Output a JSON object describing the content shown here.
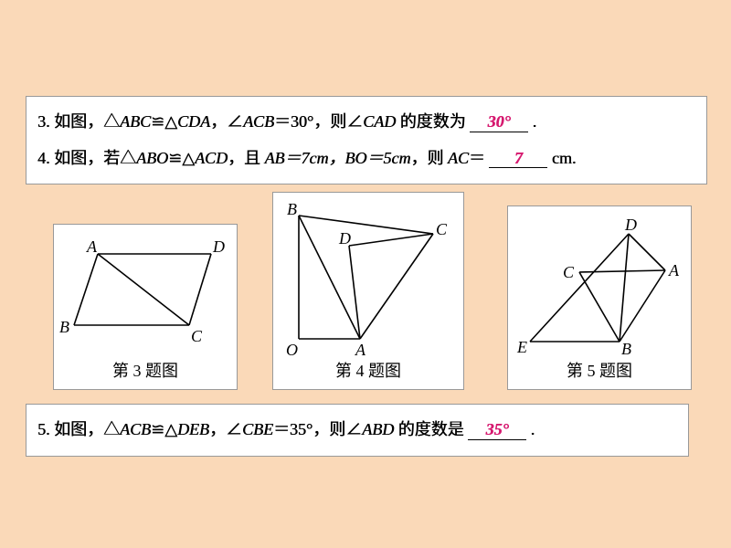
{
  "q3": {
    "pre": "3. 如图，△",
    "tri1": "ABC",
    "cong": "≌△",
    "tri2": "CDA",
    "mid": "，∠",
    "ang1": "ACB",
    "eq": "＝30°，则∠",
    "ang2": "CAD",
    "post": " 的度数为",
    "answer": "30°",
    "tail": "."
  },
  "q4": {
    "pre": "4. 如图，若△",
    "tri1": "ABO",
    "cong": "≌△",
    "tri2": "ACD",
    "mid": "，且 ",
    "eqs": "AB＝7cm，BO＝5cm",
    "then": "，则 ",
    "var": "AC",
    "eq": "＝",
    "answer": "7",
    "unit": " cm."
  },
  "q5": {
    "pre": "5. 如图，△",
    "tri1": "ACB",
    "cong": "≌△",
    "tri2": "DEB",
    "mid": "，∠",
    "ang1": "CBE",
    "eq": "＝35°，则∠",
    "ang2": "ABD",
    "post": " 的度数是",
    "answer": "35°",
    "tail": "."
  },
  "figs": {
    "f1": {
      "caption": "第 3 题图",
      "pts": {
        "A": [
          48,
          32
        ],
        "D": [
          172,
          32
        ],
        "B": [
          22,
          110
        ],
        "C": [
          148,
          110
        ]
      },
      "labels": {
        "A": [
          36,
          30
        ],
        "D": [
          174,
          30
        ],
        "B": [
          6,
          118
        ],
        "C": [
          150,
          128
        ]
      }
    },
    "f2": {
      "caption": "第 4 题图",
      "pts": {
        "O": [
          28,
          160
        ],
        "B": [
          28,
          25
        ],
        "A": [
          95,
          160
        ],
        "D": [
          83,
          58
        ],
        "C": [
          175,
          45
        ]
      },
      "labels": {
        "O": [
          14,
          178
        ],
        "B": [
          15,
          24
        ],
        "A": [
          90,
          178
        ],
        "D": [
          72,
          56
        ],
        "C": [
          178,
          46
        ]
      }
    },
    "f3": {
      "caption": "第 5 题图",
      "pts": {
        "E": [
          24,
          148
        ],
        "B": [
          122,
          148
        ],
        "A": [
          172,
          70
        ],
        "D": [
          132,
          30
        ],
        "C": [
          78,
          72
        ]
      },
      "labels": {
        "E": [
          10,
          160
        ],
        "B": [
          124,
          162
        ],
        "A": [
          176,
          76
        ],
        "D": [
          128,
          26
        ],
        "C": [
          60,
          78
        ]
      }
    }
  },
  "style": {
    "stroke": "#000",
    "sw": 1.6,
    "bg": "#fad9b8",
    "box": "#ffffff",
    "ans_color": "#d6196f"
  }
}
